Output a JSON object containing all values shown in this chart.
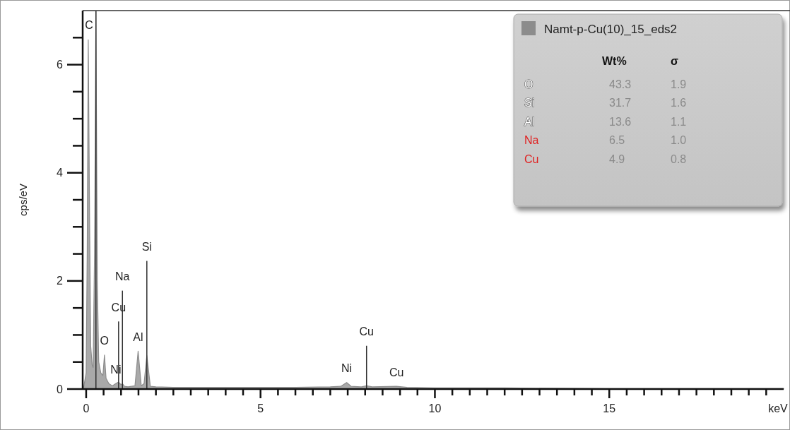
{
  "chart_data": {
    "type": "area",
    "xlabel": "keV",
    "ylabel": "cps/eV",
    "xlim": [
      -0.1,
      20
    ],
    "ylim": [
      0,
      7
    ],
    "xticks": [
      0,
      {
        "value": 0.5,
        "label": null
      },
      {
        "value": 1,
        "label": null
      },
      {
        "value": 1.5,
        "label": null
      },
      {
        "value": 2,
        "label": null
      },
      {
        "value": 2.5,
        "label": null
      },
      {
        "value": 3,
        "label": null
      },
      {
        "value": 3.5,
        "label": null
      },
      {
        "value": 4,
        "label": null
      },
      {
        "value": 4.5,
        "label": null
      },
      5,
      {
        "value": 5.5,
        "label": null
      },
      {
        "value": 6,
        "label": null
      },
      {
        "value": 6.5,
        "label": null
      },
      {
        "value": 7,
        "label": null
      },
      {
        "value": 7.5,
        "label": null
      },
      {
        "value": 8,
        "label": null
      },
      {
        "value": 8.5,
        "label": null
      },
      {
        "value": 9,
        "label": null
      },
      {
        "value": 9.5,
        "label": null
      },
      10,
      {
        "value": 10.5,
        "label": null
      },
      {
        "value": 11,
        "label": null
      },
      {
        "value": 11.5,
        "label": null
      },
      {
        "value": 12,
        "label": null
      },
      {
        "value": 12.5,
        "label": null
      },
      {
        "value": 13,
        "label": null
      },
      {
        "value": 13.5,
        "label": null
      },
      {
        "value": 14,
        "label": null
      },
      {
        "value": 14.5,
        "label": null
      },
      15,
      {
        "value": 15.5,
        "label": null
      },
      {
        "value": 16,
        "label": null
      },
      {
        "value": 16.5,
        "label": null
      },
      {
        "value": 17,
        "label": null
      },
      {
        "value": 17.5,
        "label": null
      },
      {
        "value": 18,
        "label": null
      },
      {
        "value": 18.5,
        "label": null
      },
      {
        "value": 19,
        "label": null
      },
      {
        "value": 19.5,
        "label": null
      }
    ],
    "yticks": [
      0,
      {
        "value": 0.5,
        "label": null
      },
      {
        "value": 1,
        "label": null
      },
      {
        "value": 1.5,
        "label": null
      },
      2,
      {
        "value": 2.5,
        "label": null
      },
      {
        "value": 3,
        "label": null
      },
      {
        "value": 3.5,
        "label": null
      },
      4,
      {
        "value": 4.5,
        "label": null
      },
      {
        "value": 5,
        "label": null
      },
      {
        "value": 5.5,
        "label": null
      },
      6,
      {
        "value": 6.5,
        "label": null
      }
    ],
    "legend": "top right",
    "series": [
      {
        "name": "Namt-p-Cu(10)_15_eds2",
        "color": "#8c8c8c",
        "x": [
          -0.08,
          0,
          0.03,
          0.06,
          0.1,
          0.13,
          0.17,
          0.2,
          0.24,
          0.28,
          0.32,
          0.36,
          0.42,
          0.48,
          0.525,
          0.57,
          0.65,
          0.75,
          0.85,
          0.93,
          1.0,
          1.04,
          1.1,
          1.2,
          1.3,
          1.4,
          1.49,
          1.58,
          1.66,
          1.74,
          1.84,
          2.0,
          2.5,
          3,
          4,
          5,
          6,
          7,
          7.3,
          7.47,
          7.6,
          7.9,
          8.04,
          8.2,
          8.9,
          9.2,
          10,
          12,
          15,
          18,
          20
        ],
        "values": [
          0,
          0.3,
          2.5,
          6.46,
          3,
          0.8,
          0.45,
          0.4,
          2.5,
          7,
          2,
          0.5,
          0.3,
          0.25,
          0.63,
          0.2,
          0.1,
          0.06,
          0.1,
          0.13,
          0.08,
          0.1,
          0.05,
          0.04,
          0.05,
          0.06,
          0.7,
          0.06,
          0.1,
          0.62,
          0.05,
          0.04,
          0.03,
          0.03,
          0.03,
          0.03,
          0.03,
          0.04,
          0.05,
          0.12,
          0.05,
          0.04,
          0.06,
          0.04,
          0.05,
          0.03,
          0.02,
          0.02,
          0.01,
          0.01,
          0.01
        ]
      },
      {
        "type": "bar",
        "color": "#303030",
        "x": [
          0.28,
          0.93,
          1.04,
          1.74,
          8.04
        ],
        "values": [
          7,
          1.25,
          1.82,
          2.37,
          0.8
        ]
      }
    ],
    "annotations": [
      {
        "text": "C",
        "x": 0.28,
        "y": 7
      },
      {
        "text": "Si",
        "x": 1.74,
        "y": 2.37
      },
      {
        "text": "Na",
        "x": 1.04,
        "y": 1.82
      },
      {
        "text": "Cu",
        "x": 0.93,
        "y": 1.25
      },
      {
        "text": "O",
        "x": 0.525,
        "y": 0.63
      },
      {
        "text": "Ni",
        "x": 0.85,
        "y": 0.1
      },
      {
        "text": "Al",
        "x": 1.49,
        "y": 0.7
      },
      {
        "text": "Ni",
        "x": 7.47,
        "y": 0.12
      },
      {
        "text": "Cu",
        "x": 8.04,
        "y": 0.8
      },
      {
        "text": "Cu",
        "x": 8.9,
        "y": 0.05
      },
      "Wt%",
      "σ",
      "O",
      "43.3",
      "1.9",
      "Si",
      "31.7",
      "1.6",
      "Al",
      "13.6",
      "1.1",
      "Na",
      "6.5",
      "1.0",
      "Cu",
      "4.9",
      "0.8"
    ]
  }
}
